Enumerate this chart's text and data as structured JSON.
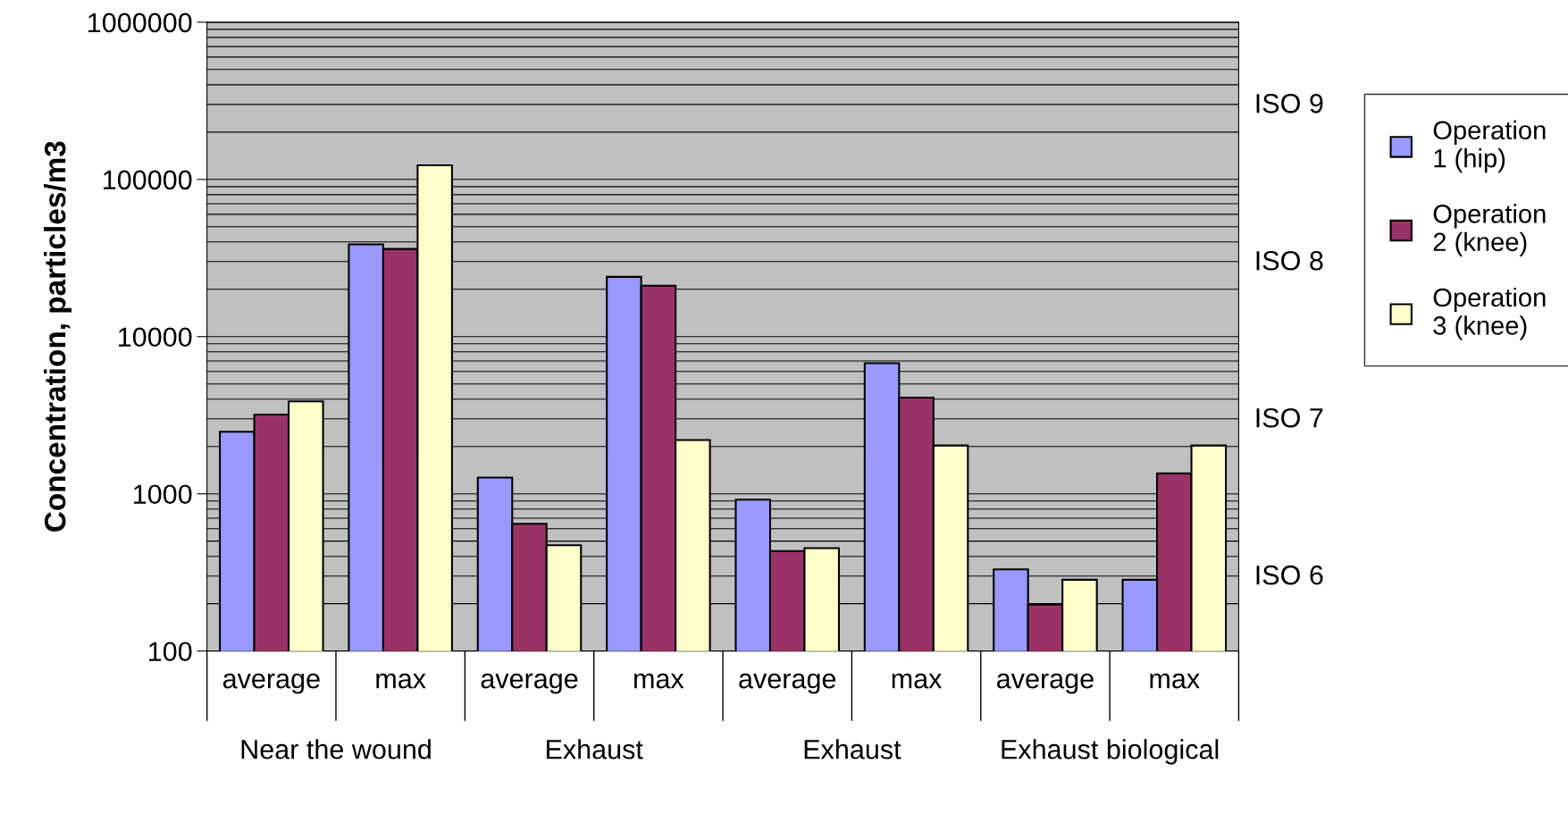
{
  "chart_data": {
    "type": "bar",
    "ylabel": "Concentration, particles/m3",
    "categories": [
      "average",
      "max",
      "average",
      "max",
      "average",
      "max",
      "average",
      "max"
    ],
    "series": [
      {
        "name": "Operation 1 (hip)",
        "color": "#9999ff",
        "values": [
          2480,
          38600,
          1270,
          24000,
          917,
          6780,
          331,
          284
        ]
      },
      {
        "name": "Operation 2 (knee)",
        "color": "#993366",
        "values": [
          3190,
          36100,
          645,
          21100,
          432,
          4090,
          197,
          1350
        ]
      },
      {
        "name": "Operation 3 (knee)",
        "color": "#ffffcc",
        "values": [
          3870,
          123000,
          471,
          2200,
          451,
          2030,
          284,
          2030
        ]
      }
    ],
    "annotations": [
      "Near the wound",
      "Exhaust",
      "Exhaust",
      "Exhaust biological",
      "ISO 6",
      "ISO 7",
      "ISO 8",
      "ISO 9"
    ],
    "log": "y",
    "ylim": [
      100,
      1000000
    ],
    "yticks": [
      100,
      1000,
      10000,
      100000,
      1000000
    ],
    "grid": "y",
    "legend": "right"
  }
}
